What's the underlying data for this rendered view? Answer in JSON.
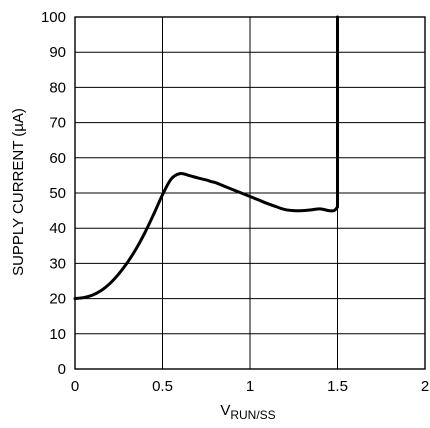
{
  "chart_data": {
    "type": "line",
    "title": "",
    "xlabel_main": "V",
    "xlabel_sub": "RUN/SS",
    "ylabel": "SUPPLY CURRENT (µA)",
    "xlim": [
      0,
      2
    ],
    "ylim": [
      0,
      100
    ],
    "xticks": [
      0,
      0.5,
      1,
      1.5,
      2
    ],
    "xtick_labels": [
      "0",
      "0.5",
      "1",
      "1.5",
      "2"
    ],
    "yticks": [
      0,
      10,
      20,
      30,
      40,
      50,
      60,
      70,
      80,
      90,
      100
    ],
    "ytick_labels": [
      "0",
      "10",
      "20",
      "30",
      "40",
      "50",
      "60",
      "70",
      "80",
      "90",
      "100"
    ],
    "grid": true,
    "series": [
      {
        "x": [
          0,
          0.05,
          0.1,
          0.15,
          0.2,
          0.25,
          0.3,
          0.35,
          0.4,
          0.45,
          0.5,
          0.55,
          0.6,
          0.65,
          0.7,
          0.75,
          0.78,
          0.8,
          0.85,
          0.9,
          0.95,
          1.0,
          1.05,
          1.1,
          1.15,
          1.2,
          1.25,
          1.3,
          1.35,
          1.4,
          1.45,
          1.48,
          1.5,
          1.5,
          1.5
        ],
        "y": [
          20,
          20.3,
          21,
          22.3,
          24.3,
          27,
          30.3,
          34.2,
          38.8,
          44,
          49.5,
          54,
          55.5,
          55,
          54.3,
          53.7,
          53.2,
          53,
          52,
          51,
          50,
          49,
          48,
          47,
          46.1,
          45.3,
          45,
          45,
          45.2,
          45.5,
          45,
          45,
          46,
          100,
          100
        ]
      }
    ]
  }
}
